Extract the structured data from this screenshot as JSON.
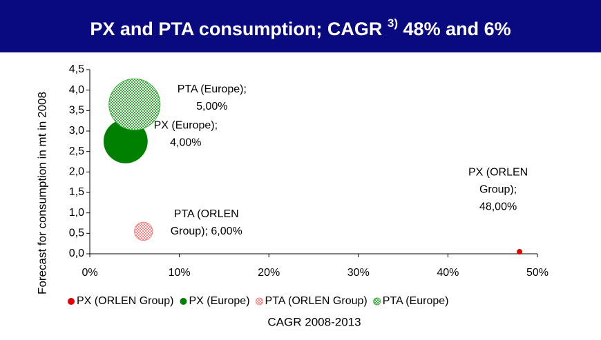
{
  "chart_data": {
    "type": "bubble",
    "title": {
      "text": "PX and PTA consumption; CAGR",
      "superscript": "3)",
      "tail": "48% and 6%"
    },
    "x_label": "CAGR 2008-2013",
    "y_label": "Forecast for consumption in mt in 2008",
    "xlim": [
      0,
      50
    ],
    "xticks": [
      {
        "value": 0,
        "label": "0%"
      },
      {
        "value": 10,
        "label": "10%"
      },
      {
        "value": 20,
        "label": "20%"
      },
      {
        "value": 30,
        "label": "30%"
      },
      {
        "value": 40,
        "label": "40%"
      },
      {
        "value": 50,
        "label": "50%"
      }
    ],
    "ylim": [
      0,
      4.5
    ],
    "yticks": [
      {
        "value": 0,
        "label": "0,0"
      },
      {
        "value": 0.5,
        "label": "0,5"
      },
      {
        "value": 1,
        "label": "1,0"
      },
      {
        "value": 1.5,
        "label": "1,5"
      },
      {
        "value": 2,
        "label": "2,0"
      },
      {
        "value": 2.5,
        "label": "2,5"
      },
      {
        "value": 3,
        "label": "3,0"
      },
      {
        "value": 3.5,
        "label": "3,5"
      },
      {
        "value": 4,
        "label": "4,0"
      },
      {
        "value": 4.5,
        "label": "4,5"
      }
    ],
    "legend": "bottom",
    "series": [
      {
        "name": "PX (ORLEN Group)",
        "color": "#e00000",
        "pattern": false,
        "x": [
          48
        ],
        "values": [
          0.05
        ],
        "sizes": [
          0.1
        ],
        "value_labels": [
          [
            "PX (ORLEN",
            "Group);",
            "48,00%"
          ]
        ]
      },
      {
        "name": "PX (Europe)",
        "color": "#008000",
        "pattern": false,
        "x": [
          4
        ],
        "values": [
          2.75
        ],
        "sizes": [
          6.4
        ],
        "value_labels": [
          [
            "PX (Europe);",
            "4,00%"
          ]
        ]
      },
      {
        "name": "PTA (ORLEN Group)",
        "color": "#ff8080",
        "pattern": true,
        "x": [
          6
        ],
        "values": [
          0.55
        ],
        "sizes": [
          1.1
        ],
        "value_labels": [
          [
            "PTA (ORLEN",
            "Group); 6,00%"
          ]
        ]
      },
      {
        "name": "PTA (Europe)",
        "color": "#33b033",
        "pattern": true,
        "x": [
          5
        ],
        "values": [
          3.65
        ],
        "sizes": [
          8.6
        ],
        "value_labels": [
          [
            "PTA (Europe);",
            "5,00%"
          ]
        ]
      }
    ]
  }
}
